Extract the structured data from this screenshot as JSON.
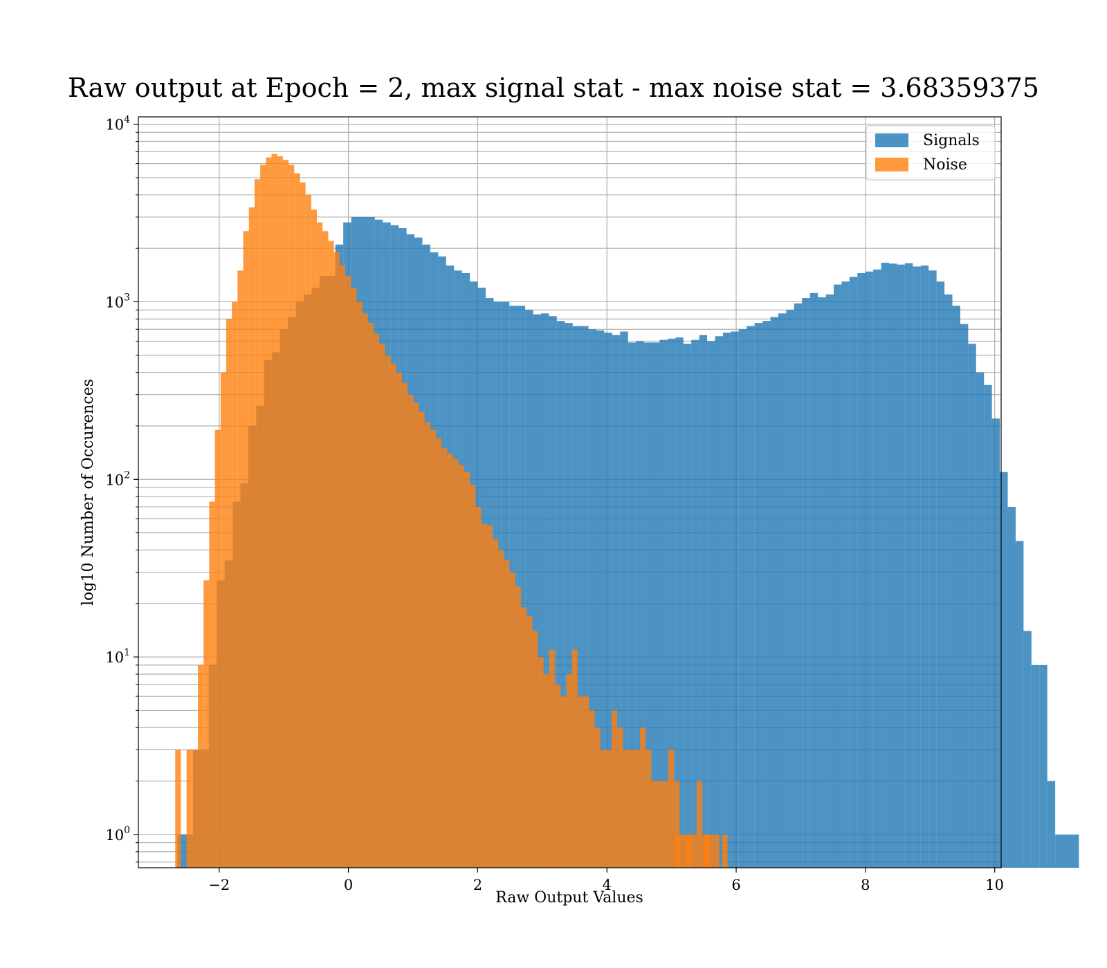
{
  "chart_data": {
    "type": "bar",
    "title": "Raw output at Epoch = 2, max signal stat - max noise stat = 3.68359375",
    "xlabel": "Raw Output Values",
    "ylabel": "log10 Number of Occurences",
    "xlim": [
      -3.25,
      10.1
    ],
    "ylim": [
      0.65,
      11000
    ],
    "yscale": "log",
    "grid": true,
    "legend_position": "top-right",
    "x_ticks": [
      -2,
      0,
      2,
      4,
      6,
      8,
      10
    ],
    "x_tick_labels": [
      "−2",
      "0",
      "2",
      "4",
      "6",
      "8",
      "10"
    ],
    "y_ticks": [
      1,
      10,
      100,
      1000,
      10000
    ],
    "y_tick_labels": [
      {
        "base": "10",
        "exp": "0"
      },
      {
        "base": "10",
        "exp": "1"
      },
      {
        "base": "10",
        "exp": "2"
      },
      {
        "base": "10",
        "exp": "3"
      },
      {
        "base": "10",
        "exp": "4"
      }
    ],
    "series": [
      {
        "name": "Signals",
        "color": "#1f77b4",
        "alpha": 0.8,
        "bin_start": -2.65,
        "bin_width": 0.1224,
        "counts": [
          1,
          1,
          3,
          3,
          9,
          27,
          35,
          75,
          95,
          200,
          260,
          470,
          520,
          700,
          820,
          1000,
          1100,
          1200,
          1400,
          1400,
          2100,
          2800,
          3000,
          3000,
          3000,
          2900,
          2800,
          2700,
          2600,
          2400,
          2300,
          2100,
          1900,
          1800,
          1600,
          1500,
          1450,
          1300,
          1200,
          1050,
          1000,
          1000,
          950,
          950,
          900,
          850,
          860,
          830,
          780,
          760,
          730,
          730,
          700,
          690,
          670,
          650,
          680,
          590,
          600,
          590,
          590,
          610,
          620,
          630,
          580,
          610,
          650,
          600,
          640,
          670,
          680,
          700,
          730,
          760,
          780,
          820,
          860,
          900,
          980,
          1050,
          1120,
          1060,
          1100,
          1250,
          1300,
          1380,
          1450,
          1480,
          1520,
          1660,
          1640,
          1620,
          1650,
          1580,
          1600,
          1500,
          1300,
          1100,
          950,
          750,
          580,
          400,
          340,
          220,
          110,
          70,
          45,
          14,
          9,
          9,
          2,
          1,
          1
        ],
        "tail_counts": [
          1
        ]
      },
      {
        "name": "Noise",
        "color": "#ff7f0e",
        "alpha": 0.8,
        "bin_start": -2.68,
        "bin_width": 0.0877,
        "counts": [
          3,
          0,
          3,
          3,
          9,
          27,
          75,
          190,
          400,
          800,
          1000,
          1500,
          2500,
          3400,
          4900,
          5900,
          6500,
          6800,
          6600,
          6300,
          5900,
          5300,
          4700,
          4000,
          3300,
          2800,
          2500,
          2200,
          1900,
          1600,
          1400,
          1200,
          1000,
          860,
          760,
          660,
          580,
          500,
          450,
          400,
          350,
          300,
          270,
          240,
          210,
          190,
          170,
          150,
          140,
          130,
          120,
          110,
          93,
          70,
          56,
          55,
          46,
          40,
          35,
          30,
          25,
          19,
          17,
          14,
          10,
          8,
          11,
          7,
          6,
          8,
          11,
          6,
          6,
          5,
          4,
          3,
          3,
          5,
          4,
          3,
          3,
          3,
          4,
          3,
          2,
          2,
          2,
          3,
          2,
          1,
          1,
          1,
          2,
          1,
          1,
          1,
          0,
          0,
          0,
          0,
          0,
          0,
          0,
          0,
          0,
          0,
          0,
          0,
          0,
          0,
          0
        ],
        "extra": [
          [
            5.05,
            1
          ],
          [
            5.22,
            1
          ],
          [
            5.5,
            1
          ],
          [
            5.78,
            1
          ]
        ]
      }
    ],
    "legend": [
      "Signals",
      "Noise"
    ]
  }
}
